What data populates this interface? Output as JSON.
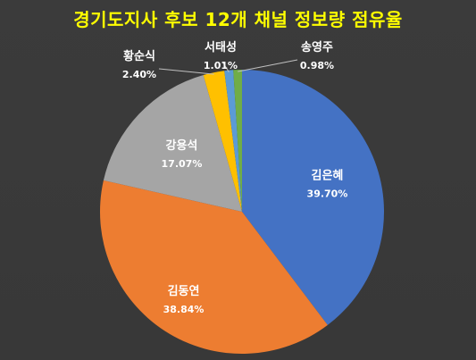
{
  "chart_data": {
    "type": "pie",
    "title": "경기도지사 후보 12개 채널 정보량 점유율",
    "slices": [
      {
        "name": "김은혜",
        "value": 39.7,
        "label": "39.70%",
        "color": "#4472c4"
      },
      {
        "name": "김동연",
        "value": 38.84,
        "label": "38.84%",
        "color": "#ed7d31"
      },
      {
        "name": "강용석",
        "value": 17.07,
        "label": "17.07%",
        "color": "#a5a5a5"
      },
      {
        "name": "황순식",
        "value": 2.4,
        "label": "2.40%",
        "color": "#ffc000"
      },
      {
        "name": "서태성",
        "value": 1.01,
        "label": "1.01%",
        "color": "#5b9bd5"
      },
      {
        "name": "송영주",
        "value": 0.98,
        "label": "0.98%",
        "color": "#70ad47"
      }
    ],
    "legend": "none",
    "data_labels": "category-and-percent"
  }
}
